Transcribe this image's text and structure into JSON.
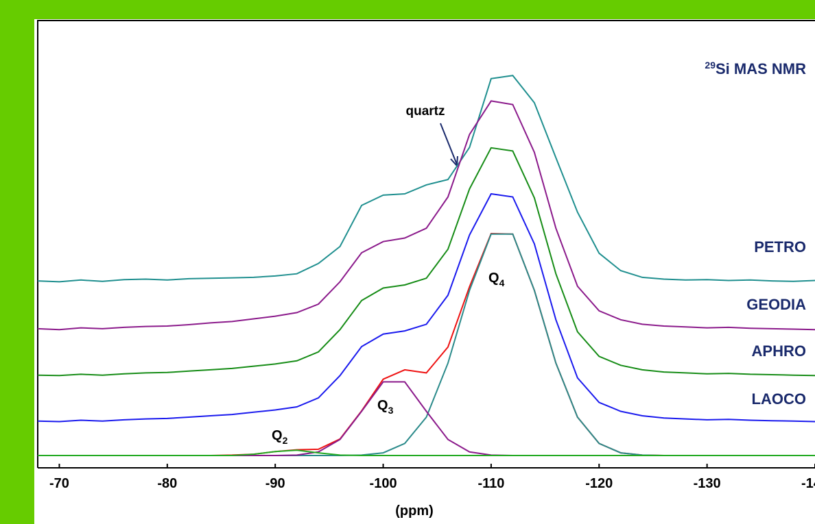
{
  "chart_data": {
    "type": "line",
    "title": {
      "superscript": "29",
      "text": "Si MAS NMR"
    },
    "x_label": "(ppm)",
    "x": [
      -68,
      -70,
      -72,
      -74,
      -76,
      -78,
      -80,
      -82,
      -84,
      -86,
      -88,
      -90,
      -92,
      -94,
      -96,
      -98,
      -100,
      -102,
      -104,
      -106,
      -108,
      -110,
      -112,
      -114,
      -116,
      -118,
      -120,
      -122,
      -124,
      -126,
      -128,
      -130,
      -132,
      -134,
      -136,
      -138,
      -140
    ],
    "xlim": [
      -68,
      -140
    ],
    "xticks": [
      -70,
      -80,
      -90,
      -100,
      -110,
      -120,
      -130,
      -140
    ],
    "ylim": [
      0,
      100
    ],
    "series": [
      {
        "name": "PETRO",
        "color": "#1f8f8f",
        "values": [
          41.7,
          41.5,
          41.9,
          41.6,
          42.0,
          42.1,
          41.9,
          42.2,
          42.3,
          42.4,
          42.5,
          42.8,
          43.3,
          45.6,
          49.4,
          58.6,
          60.9,
          61.2,
          63.2,
          64.4,
          71.6,
          87.0,
          87.7,
          81.6,
          69.3,
          57.1,
          47.9,
          44.0,
          42.5,
          42.1,
          41.9,
          42.0,
          41.8,
          41.9,
          41.7,
          41.6,
          41.8
        ]
      },
      {
        "name": "GEODIA",
        "color": "#8b1a8b",
        "values": [
          31.0,
          30.8,
          31.2,
          31.0,
          31.3,
          31.5,
          31.6,
          31.9,
          32.3,
          32.6,
          33.2,
          33.8,
          34.6,
          36.5,
          41.5,
          48.0,
          50.5,
          51.3,
          53.5,
          60.5,
          74.5,
          82.0,
          81.2,
          70.5,
          53.5,
          40.5,
          35.0,
          33.0,
          32.0,
          31.6,
          31.4,
          31.2,
          31.3,
          31.1,
          31.0,
          30.9,
          30.8
        ]
      },
      {
        "name": "APHRO",
        "color": "#168c16",
        "values": [
          20.6,
          20.5,
          20.8,
          20.6,
          20.9,
          21.1,
          21.2,
          21.5,
          21.8,
          22.1,
          22.6,
          23.1,
          23.8,
          25.8,
          30.8,
          37.3,
          40.1,
          40.8,
          42.3,
          48.8,
          62.3,
          71.5,
          70.8,
          60.3,
          43.3,
          30.3,
          24.8,
          22.8,
          21.8,
          21.3,
          21.1,
          20.9,
          21.0,
          20.8,
          20.7,
          20.6,
          20.5
        ]
      },
      {
        "name": "LAOCO",
        "color": "#1a1aee",
        "values": [
          10.3,
          10.2,
          10.5,
          10.3,
          10.6,
          10.8,
          10.9,
          11.2,
          11.5,
          11.8,
          12.3,
          12.8,
          13.5,
          15.5,
          20.5,
          27.0,
          29.8,
          30.5,
          32.0,
          38.5,
          52.0,
          61.2,
          60.5,
          50.0,
          33.0,
          20.0,
          14.5,
          12.5,
          11.5,
          11.0,
          10.8,
          10.6,
          10.7,
          10.5,
          10.4,
          10.3,
          10.2
        ]
      },
      {
        "color": "#ee1111",
        "values": [
          2.6,
          2.6,
          2.6,
          2.6,
          2.6,
          2.6,
          2.6,
          2.6,
          2.6,
          2.7,
          2.9,
          3.5,
          3.9,
          4.0,
          6.3,
          12.6,
          19.7,
          21.8,
          21.1,
          26.9,
          40.4,
          52.3,
          52.2,
          39.6,
          23.3,
          11.2,
          5.3,
          3.2,
          2.7,
          2.6,
          2.6,
          2.6,
          2.6,
          2.6,
          2.6,
          2.6,
          2.6
        ]
      },
      {
        "color": "#2a8a8a",
        "values": [
          2.6,
          2.6,
          2.6,
          2.6,
          2.6,
          2.6,
          2.6,
          2.6,
          2.6,
          2.6,
          2.6,
          2.6,
          2.6,
          2.6,
          2.6,
          2.7,
          3.2,
          5.3,
          11.2,
          23.3,
          39.6,
          52.2,
          52.2,
          39.6,
          23.3,
          11.2,
          5.3,
          3.2,
          2.7,
          2.6,
          2.6,
          2.6,
          2.6,
          2.6,
          2.6,
          2.6,
          2.6
        ]
      },
      {
        "color": "#8b1a8b",
        "values": [
          2.6,
          2.6,
          2.6,
          2.6,
          2.6,
          2.6,
          2.6,
          2.6,
          2.6,
          2.6,
          2.6,
          2.6,
          2.7,
          3.4,
          6.2,
          12.5,
          19.1,
          19.1,
          12.5,
          6.2,
          3.4,
          2.7,
          2.6,
          2.6,
          2.6,
          2.6,
          2.6,
          2.6,
          2.6,
          2.6,
          2.6,
          2.6,
          2.6,
          2.6,
          2.6,
          2.6,
          2.6
        ]
      },
      {
        "color": "#22aa22",
        "values": [
          2.6,
          2.6,
          2.6,
          2.6,
          2.6,
          2.6,
          2.6,
          2.6,
          2.6,
          2.6,
          2.9,
          3.5,
          3.8,
          3.2,
          2.7,
          2.6,
          2.6,
          2.6,
          2.6,
          2.6,
          2.6,
          2.6,
          2.6,
          2.6,
          2.6,
          2.6,
          2.6,
          2.6,
          2.6,
          2.6,
          2.6,
          2.6,
          2.6,
          2.6,
          2.6,
          2.6,
          2.6
        ]
      }
    ],
    "annotations": [
      {
        "text": "Q",
        "subscript": "2"
      },
      {
        "text": "Q",
        "subscript": "3"
      },
      {
        "text": "Q",
        "subscript": "4"
      },
      {
        "text": "quartz"
      }
    ]
  }
}
